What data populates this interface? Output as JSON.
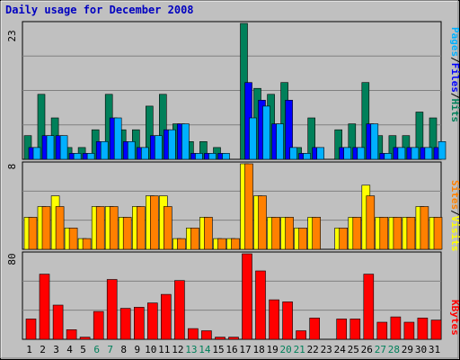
{
  "title": "Daily usage for December 2008",
  "chart_data": [
    {
      "type": "bar",
      "categories": [
        "1",
        "2",
        "3",
        "4",
        "5",
        "6",
        "7",
        "8",
        "9",
        "10",
        "11",
        "12",
        "13",
        "14",
        "15",
        "16",
        "17",
        "18",
        "19",
        "20",
        "21",
        "22",
        "23",
        "24",
        "25",
        "26",
        "27",
        "28",
        "29",
        "30",
        "31"
      ],
      "weekend_days": [
        "6",
        "7",
        "13",
        "14",
        "20",
        "21",
        "27",
        "28"
      ],
      "ylim": [
        0,
        23
      ],
      "ymax_label": "23",
      "right_labels": [
        "Pages",
        "/",
        "Files",
        "/",
        "Hits"
      ],
      "series": [
        {
          "name": "Hits",
          "color": "#00805a",
          "values": [
            4,
            11,
            7,
            2,
            2,
            5,
            11,
            5,
            5,
            9,
            11,
            6,
            3,
            3,
            2,
            0,
            23,
            12,
            11,
            13,
            2,
            7,
            0,
            5,
            6,
            13,
            4,
            4,
            4,
            8,
            7
          ]
        },
        {
          "name": "Files",
          "color": "#0000ff",
          "values": [
            2,
            4,
            4,
            1,
            1,
            3,
            7,
            3,
            2,
            4,
            5,
            6,
            1,
            1,
            1,
            0,
            13,
            10,
            6,
            10,
            1,
            2,
            0,
            2,
            2,
            6,
            1,
            2,
            2,
            2,
            2
          ]
        },
        {
          "name": "Pages",
          "color": "#00b0ff",
          "values": [
            2,
            4,
            4,
            1,
            1,
            3,
            7,
            3,
            2,
            4,
            5,
            6,
            1,
            1,
            1,
            0,
            7,
            9,
            6,
            2,
            1,
            2,
            0,
            2,
            2,
            6,
            1,
            2,
            2,
            2,
            3
          ]
        }
      ]
    },
    {
      "type": "bar",
      "categories": [
        "1",
        "2",
        "3",
        "4",
        "5",
        "6",
        "7",
        "8",
        "9",
        "10",
        "11",
        "12",
        "13",
        "14",
        "15",
        "16",
        "17",
        "18",
        "19",
        "20",
        "21",
        "22",
        "23",
        "24",
        "25",
        "26",
        "27",
        "28",
        "29",
        "30",
        "31"
      ],
      "ylim": [
        0,
        8
      ],
      "ymax_label": "8",
      "right_labels": [
        "Sites",
        "/",
        "Visits"
      ],
      "series": [
        {
          "name": "Visits",
          "color": "#ffff00",
          "values": [
            3,
            4,
            5,
            2,
            1,
            4,
            4,
            3,
            4,
            5,
            5,
            1,
            2,
            3,
            1,
            1,
            8,
            5,
            3,
            3,
            2,
            3,
            0,
            2,
            3,
            6,
            3,
            3,
            3,
            4,
            3
          ]
        },
        {
          "name": "Sites",
          "color": "#ff8000",
          "values": [
            3,
            4,
            4,
            2,
            1,
            4,
            4,
            3,
            4,
            5,
            4,
            1,
            2,
            3,
            1,
            1,
            8,
            5,
            3,
            3,
            2,
            3,
            0,
            2,
            3,
            5,
            3,
            3,
            3,
            4,
            3
          ]
        }
      ]
    },
    {
      "type": "bar",
      "categories": [
        "1",
        "2",
        "3",
        "4",
        "5",
        "6",
        "7",
        "8",
        "9",
        "10",
        "11",
        "12",
        "13",
        "14",
        "15",
        "16",
        "17",
        "18",
        "19",
        "20",
        "21",
        "22",
        "23",
        "24",
        "25",
        "26",
        "27",
        "28",
        "29",
        "30",
        "31"
      ],
      "ylim": [
        0,
        80
      ],
      "ymax_label": "80",
      "right_labels": [
        "KBytes"
      ],
      "series": [
        {
          "name": "KBytes",
          "color": "#ff0000",
          "values": [
            19,
            61,
            32,
            9,
            2,
            26,
            56,
            29,
            30,
            34,
            42,
            55,
            10,
            8,
            2,
            2,
            80,
            64,
            37,
            35,
            8,
            20,
            0,
            19,
            19,
            61,
            16,
            21,
            16,
            20,
            18
          ]
        }
      ]
    }
  ]
}
